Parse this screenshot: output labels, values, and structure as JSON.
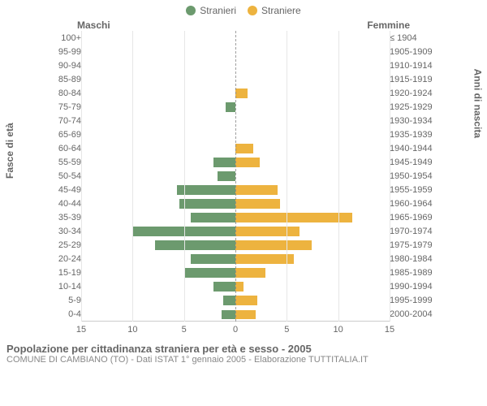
{
  "type": "population-pyramid",
  "title": "Popolazione per cittadinanza straniera per età e sesso - 2005",
  "subtitle": "COMUNE DI CAMBIANO (TO) - Dati ISTAT 1° gennaio 2005 - Elaborazione TUTTITALIA.IT",
  "legend": [
    {
      "label": "Stranieri",
      "color": "#6c9a6e"
    },
    {
      "label": "Straniere",
      "color": "#edb33f"
    }
  ],
  "column_titles": {
    "left": "Maschi",
    "right": "Femmine"
  },
  "y_axis_left_title": "Fasce di età",
  "y_axis_right_title": "Anni di nascita",
  "colors": {
    "male_bar": "#6c9a6e",
    "female_bar": "#edb33f",
    "background": "#ffffff",
    "grid": "#e6e6e6",
    "axis_text": "#666666",
    "centerline": "#888888"
  },
  "x_axis": {
    "max": 15,
    "ticks": [
      15,
      10,
      5,
      0,
      5,
      10,
      15
    ]
  },
  "ticklabel_fontsize": 11,
  "title_fontsize": 13,
  "rows": [
    {
      "age": "100+",
      "year": "≤ 1904",
      "m": 0,
      "f": 0
    },
    {
      "age": "95-99",
      "year": "1905-1909",
      "m": 0,
      "f": 0
    },
    {
      "age": "90-94",
      "year": "1910-1914",
      "m": 0,
      "f": 0
    },
    {
      "age": "85-89",
      "year": "1915-1919",
      "m": 0,
      "f": 0
    },
    {
      "age": "80-84",
      "year": "1920-1924",
      "m": 0,
      "f": 1.2
    },
    {
      "age": "75-79",
      "year": "1925-1929",
      "m": 1.0,
      "f": 0
    },
    {
      "age": "70-74",
      "year": "1930-1934",
      "m": 0,
      "f": 0
    },
    {
      "age": "65-69",
      "year": "1935-1939",
      "m": 0,
      "f": 0
    },
    {
      "age": "60-64",
      "year": "1940-1944",
      "m": 0,
      "f": 1.8
    },
    {
      "age": "55-59",
      "year": "1945-1949",
      "m": 2.2,
      "f": 2.4
    },
    {
      "age": "50-54",
      "year": "1950-1954",
      "m": 1.8,
      "f": 0
    },
    {
      "age": "45-49",
      "year": "1955-1959",
      "m": 5.8,
      "f": 4.2
    },
    {
      "age": "40-44",
      "year": "1960-1964",
      "m": 5.6,
      "f": 4.4
    },
    {
      "age": "35-39",
      "year": "1965-1969",
      "m": 4.4,
      "f": 11.6
    },
    {
      "age": "30-34",
      "year": "1970-1974",
      "m": 10.2,
      "f": 6.4
    },
    {
      "age": "25-29",
      "year": "1975-1979",
      "m": 8.0,
      "f": 7.6
    },
    {
      "age": "20-24",
      "year": "1980-1984",
      "m": 4.4,
      "f": 5.8
    },
    {
      "age": "15-19",
      "year": "1985-1989",
      "m": 5.0,
      "f": 3.0
    },
    {
      "age": "10-14",
      "year": "1990-1994",
      "m": 2.2,
      "f": 0.8
    },
    {
      "age": "5-9",
      "year": "1995-1999",
      "m": 1.2,
      "f": 2.2
    },
    {
      "age": "0-4",
      "year": "2000-2004",
      "m": 1.4,
      "f": 2.0
    }
  ]
}
